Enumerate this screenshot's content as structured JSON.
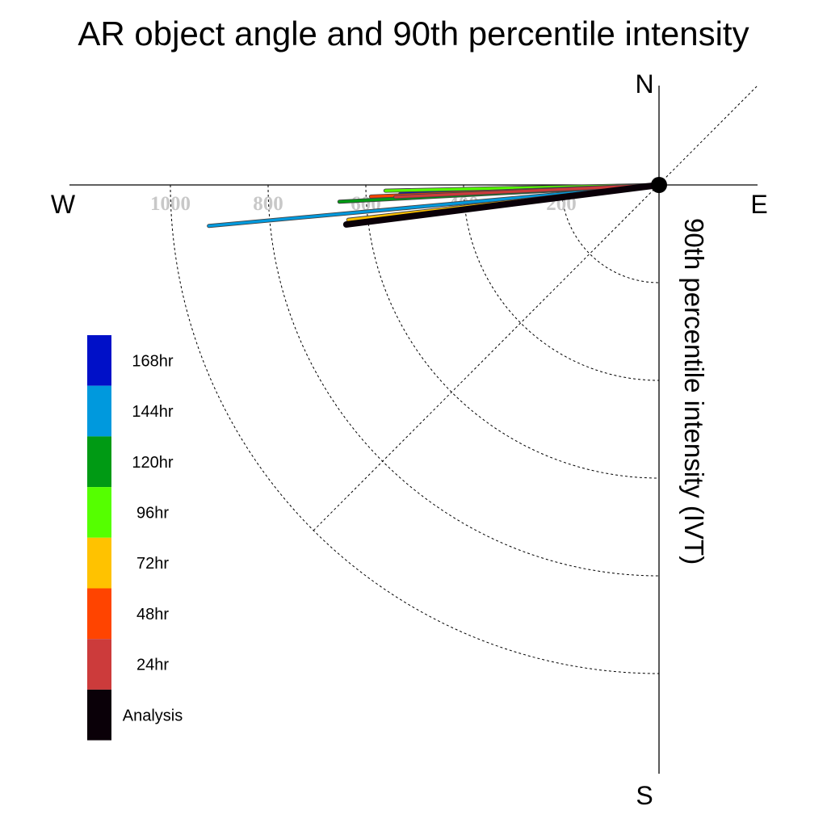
{
  "chart_data": {
    "type": "polar-vector",
    "title": "AR object angle and 90th percentile intensity",
    "radial_label": "90th percentile intensity (IVT)",
    "compass": {
      "north": "N",
      "south": "S",
      "east": "E",
      "west": "W"
    },
    "radial_ticks": [
      200,
      400,
      600,
      800,
      1000
    ],
    "radial_tick_labels": [
      "200",
      "400",
      "600",
      "800",
      "1000"
    ],
    "rings": [
      200,
      400,
      600,
      800,
      1000
    ],
    "series": [
      {
        "name": "168hr",
        "color": "#0010c8",
        "intensity": 530,
        "angle_deg": 182.0
      },
      {
        "name": "144hr",
        "color": "#0099dd",
        "intensity": 925,
        "angle_deg": 185.2
      },
      {
        "name": "120hr",
        "color": "#009a14",
        "intensity": 655,
        "angle_deg": 183.0
      },
      {
        "name": "96hr",
        "color": "#55ff00",
        "intensity": 560,
        "angle_deg": 181.2
      },
      {
        "name": "72hr",
        "color": "#ffc200",
        "intensity": 640,
        "angle_deg": 186.4
      },
      {
        "name": "48hr",
        "color": "#ff4400",
        "intensity": 590,
        "angle_deg": 182.3
      },
      {
        "name": "24hr",
        "color": "#cc3b3b",
        "intensity": 540,
        "angle_deg": 182.6
      },
      {
        "name": "Analysis",
        "color": "#0a0008",
        "intensity": 645,
        "angle_deg": 187.2
      }
    ],
    "legend_position": "left"
  }
}
